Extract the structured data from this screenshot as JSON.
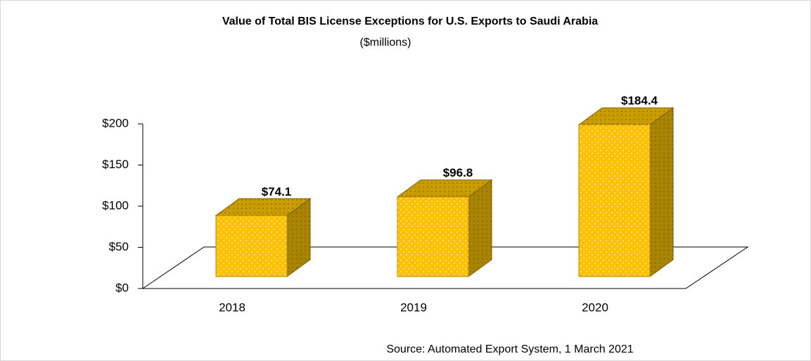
{
  "chart_data": {
    "type": "bar3d",
    "title": "Value of Total BIS License Exceptions for U.S. Exports to Saudi Arabia",
    "subtitle": "($millions)",
    "source": "Source: Automated Export System, 1 March 2021",
    "categories": [
      "2018",
      "2019",
      "2020"
    ],
    "values": [
      74.1,
      96.8,
      184.4
    ],
    "value_labels": [
      "$74.1",
      "$96.8",
      "$184.4"
    ],
    "color": "#ffc000",
    "ylim": [
      0,
      200
    ],
    "yticks": [
      {
        "value": 0,
        "label": "$0"
      },
      {
        "value": 50,
        "label": "$50"
      },
      {
        "value": 100,
        "label": "$100"
      },
      {
        "value": 150,
        "label": "$150"
      },
      {
        "value": 200,
        "label": "$200"
      }
    ],
    "grid": false
  }
}
